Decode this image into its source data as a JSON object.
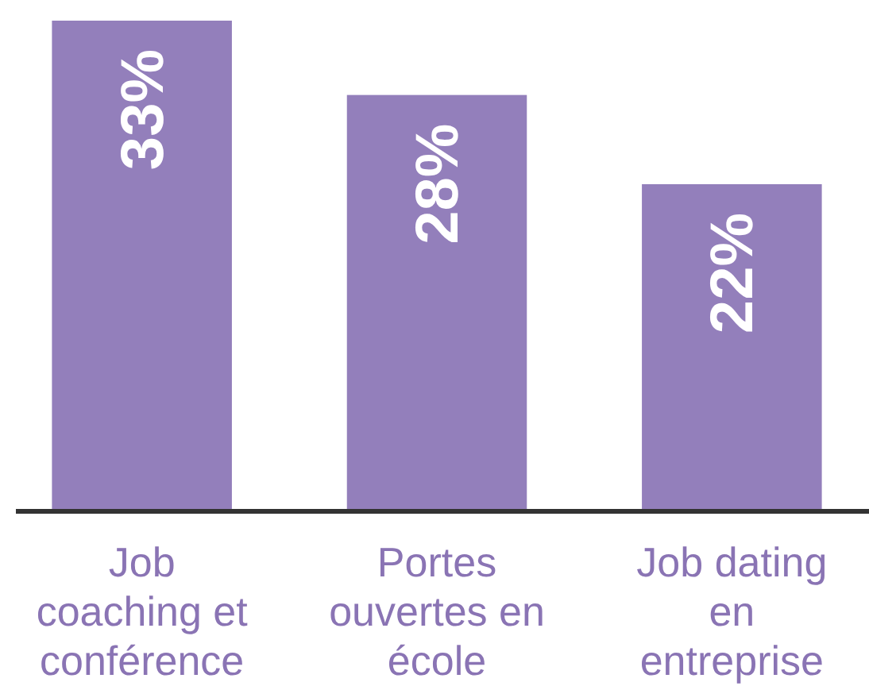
{
  "chart_data": {
    "type": "bar",
    "categories": [
      "Job coaching et conférence",
      "Portes ouvertes en école",
      "Job dating en entreprise"
    ],
    "values": [
      33,
      28,
      22
    ],
    "color": "#937fbb",
    "value_labels": [
      "33%",
      "28%",
      "22%"
    ]
  }
}
